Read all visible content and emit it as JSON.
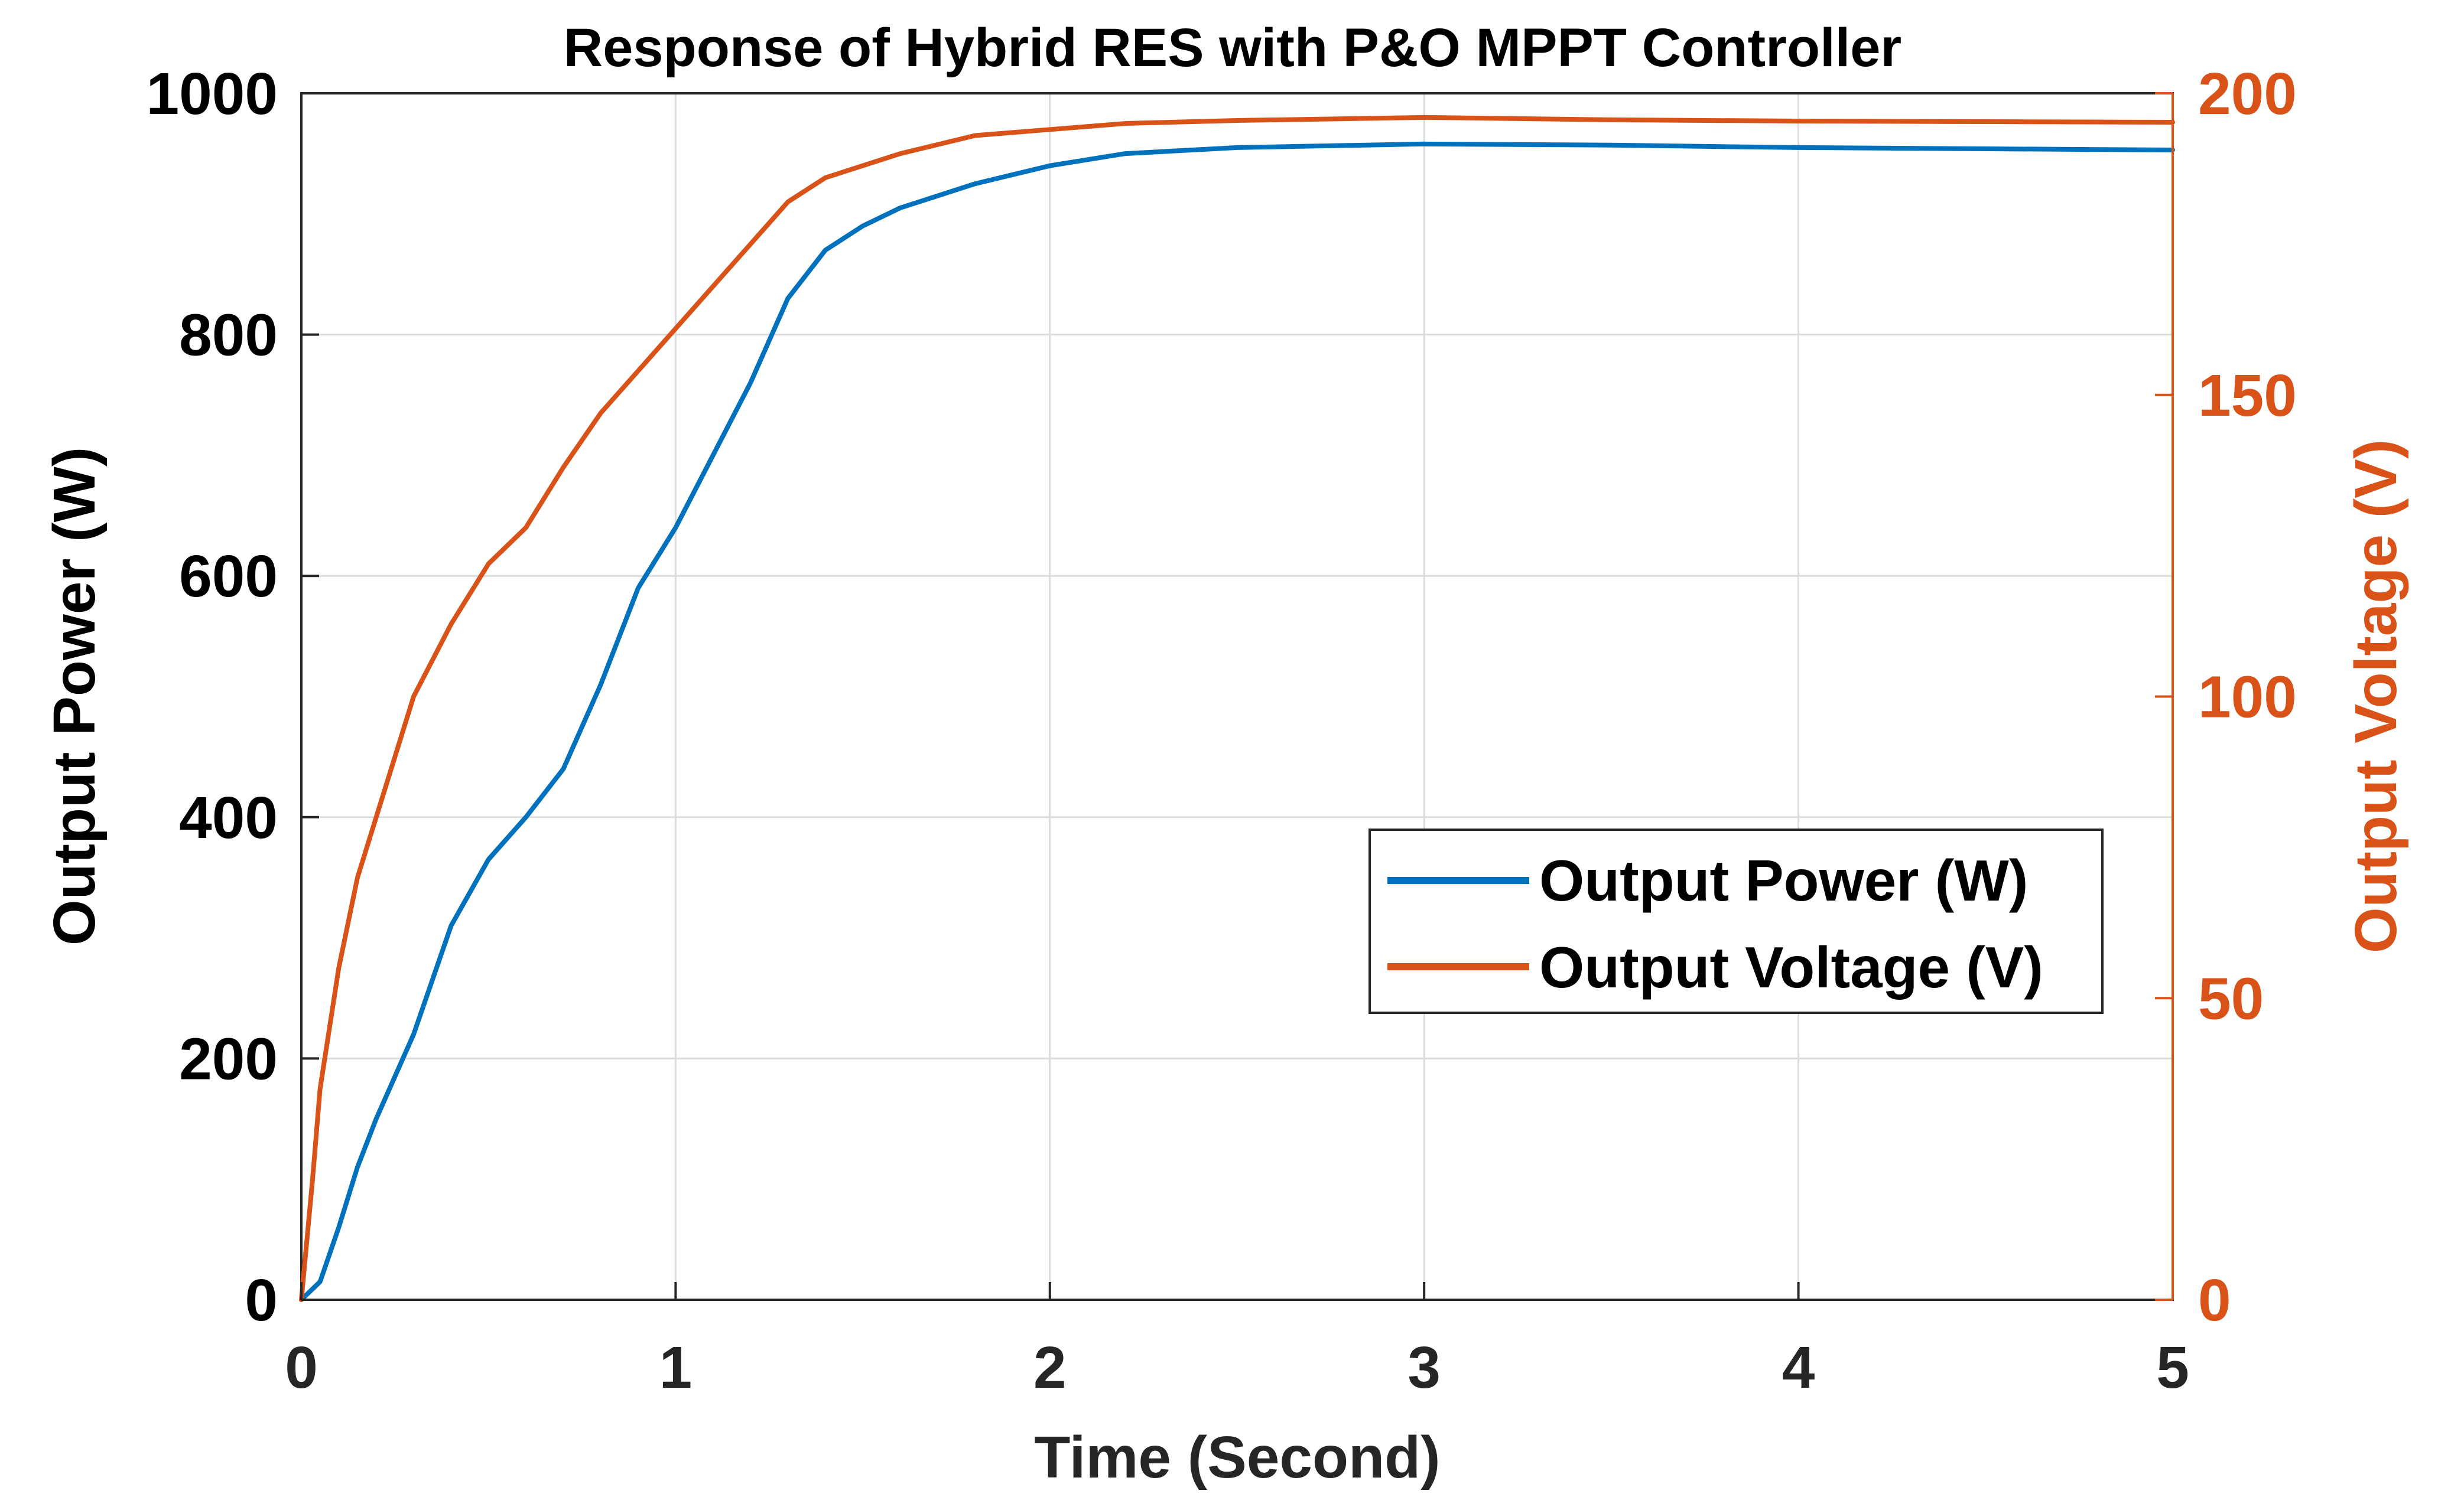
{
  "chart_data": {
    "type": "line",
    "title": "Response of Hybrid RES with P&O MPPT Controller",
    "xlabel": "Time (Second)",
    "ylabel_left": "Output Power (W)",
    "ylabel_right": "Output Voltage (V)",
    "xlim": [
      0,
      5
    ],
    "ylim_left": [
      0,
      1000
    ],
    "ylim_right": [
      0,
      200
    ],
    "xticks": [
      "0",
      "1",
      "2",
      "3",
      "4",
      "5"
    ],
    "yticks_left": [
      "0",
      "200",
      "400",
      "600",
      "800",
      "1000"
    ],
    "yticks_right": [
      "0",
      "50",
      "100",
      "150",
      "200"
    ],
    "grid": true,
    "legend_position": "middle-right",
    "colors": {
      "power": "#0072BD",
      "voltage": "#D95319",
      "axis": "#262626",
      "grid": "#dcdcdc"
    },
    "series": [
      {
        "name": "Output Power (W)",
        "axis": "left",
        "x": [
          0,
          0.05,
          0.1,
          0.15,
          0.2,
          0.3,
          0.4,
          0.5,
          0.6,
          0.7,
          0.8,
          0.9,
          1.0,
          1.1,
          1.2,
          1.3,
          1.4,
          1.5,
          1.6,
          1.8,
          2.0,
          2.2,
          2.5,
          3.0,
          3.5,
          4.0,
          4.5,
          5.0
        ],
        "y": [
          0,
          15,
          60,
          110,
          150,
          220,
          310,
          365,
          400,
          440,
          510,
          590,
          640,
          700,
          760,
          830,
          870,
          890,
          905,
          925,
          940,
          950,
          955,
          958,
          957,
          955,
          954,
          953
        ]
      },
      {
        "name": "Output Voltage (V)",
        "axis": "right",
        "x": [
          0,
          0.03,
          0.05,
          0.1,
          0.15,
          0.2,
          0.3,
          0.4,
          0.5,
          0.6,
          0.7,
          0.8,
          0.9,
          1.0,
          1.1,
          1.2,
          1.3,
          1.4,
          1.5,
          1.6,
          1.8,
          2.0,
          2.2,
          2.5,
          3.0,
          3.5,
          4.0,
          4.5,
          5.0
        ],
        "y": [
          0,
          20,
          35,
          55,
          70,
          80,
          100,
          112,
          122,
          128,
          138,
          147,
          154,
          161,
          168,
          175,
          182,
          186,
          188,
          190,
          193,
          194,
          195,
          195.5,
          196,
          195.6,
          195.4,
          195.3,
          195.2
        ]
      }
    ]
  }
}
